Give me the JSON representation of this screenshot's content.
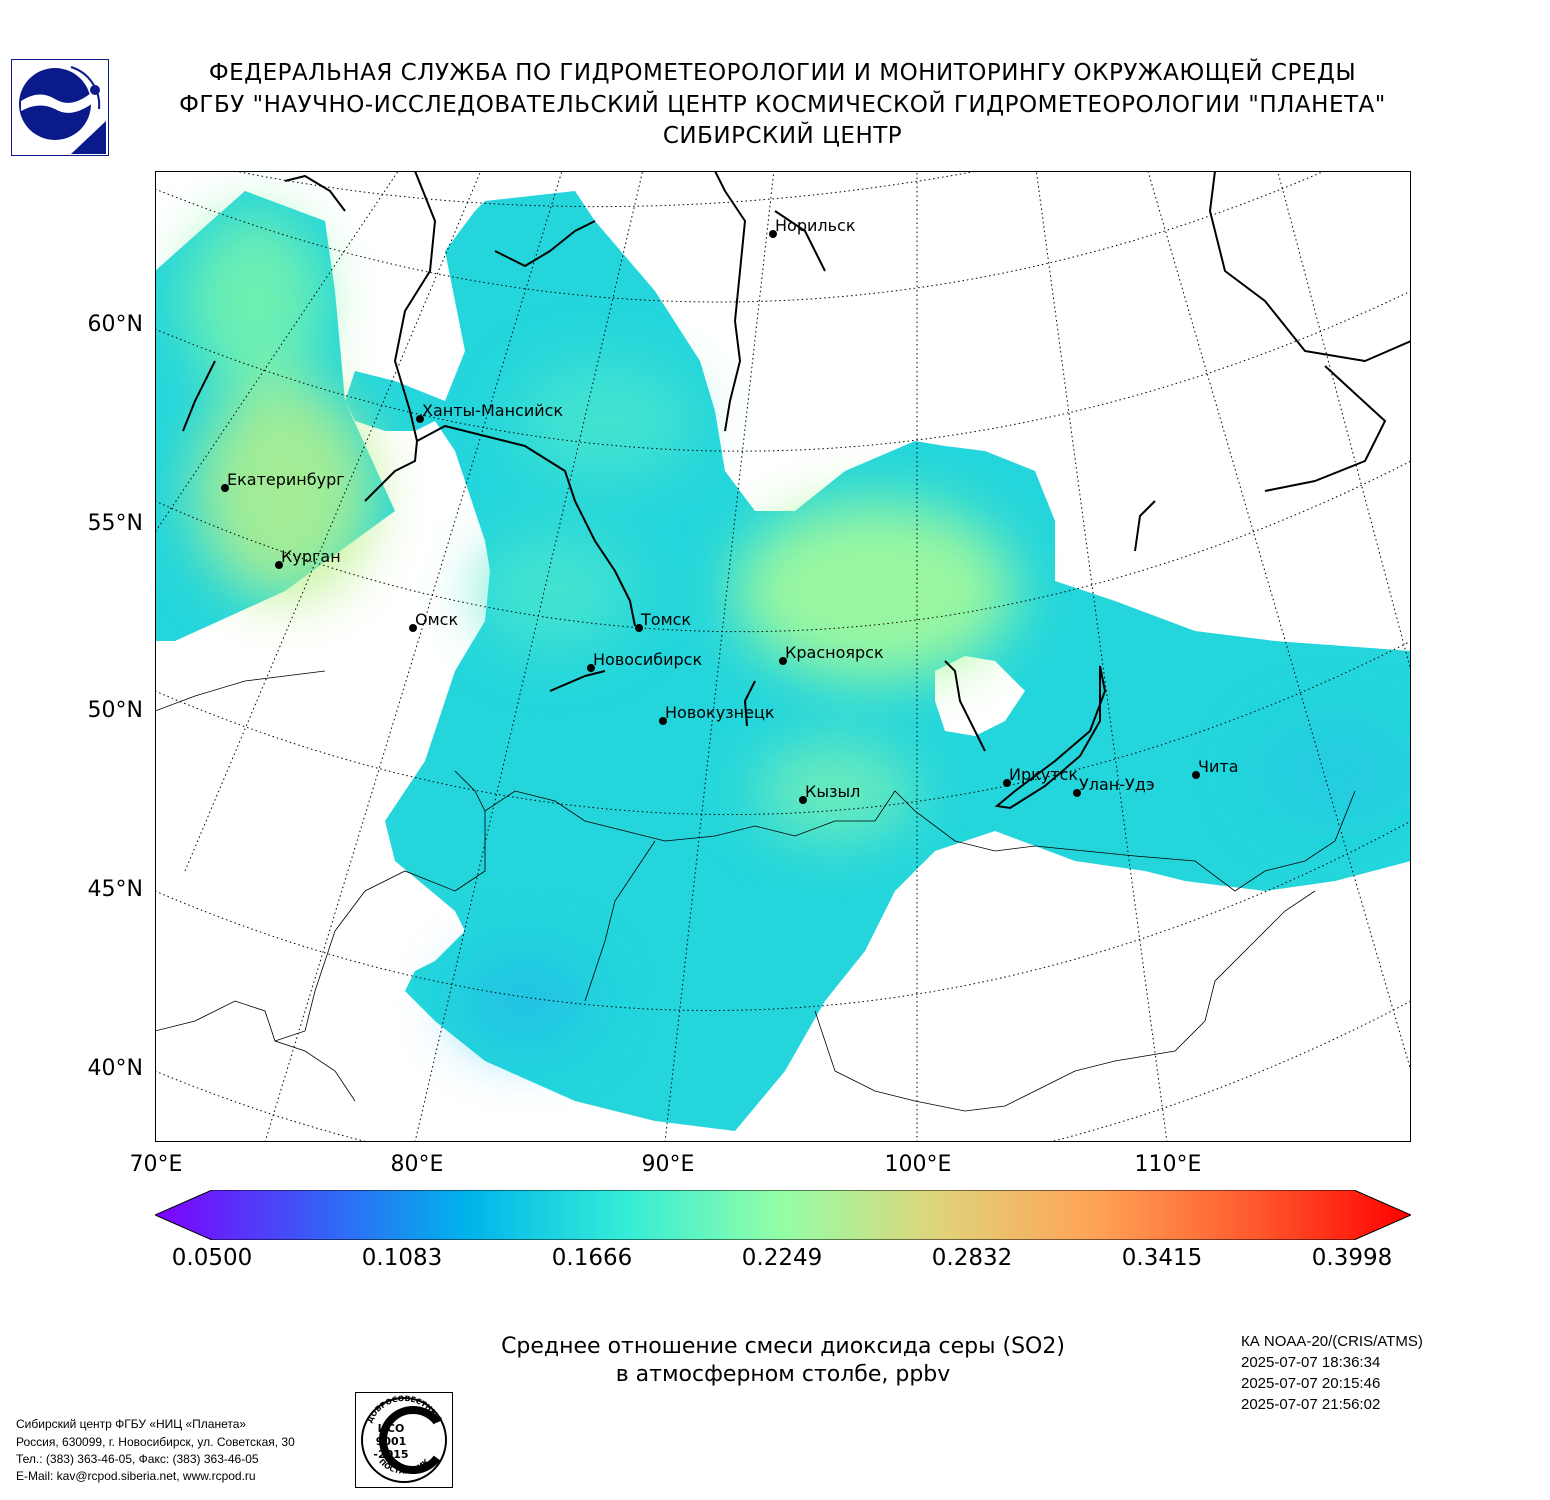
{
  "header": {
    "line1": "ФЕДЕРАЛЬНАЯ СЛУЖБА ПО ГИДРОМЕТЕОРОЛОГИИ И МОНИТОРИНГУ ОКРУЖАЮЩЕЙ СРЕДЫ",
    "line2": "ФГБУ \"НАУЧНО-ИССЛЕДОВАТЕЛЬСКИЙ ЦЕНТР КОСМИЧЕСКОЙ ГИДРОМЕТЕОРОЛОГИИ \"ПЛАНЕТА\"",
    "line3": "СИБИРСКИЙ ЦЕНТР"
  },
  "map": {
    "lat_labels": [
      "60°N",
      "55°N",
      "50°N",
      "45°N",
      "40°N"
    ],
    "lon_labels": [
      "70°E",
      "80°E",
      "90°E",
      "100°E",
      "110°E"
    ],
    "cities": [
      {
        "name": "Норильск"
      },
      {
        "name": "Ханты-Мансийск"
      },
      {
        "name": "Екатеринбург"
      },
      {
        "name": "Курган"
      },
      {
        "name": "Омск"
      },
      {
        "name": "Томск"
      },
      {
        "name": "Новосибирск"
      },
      {
        "name": "Красноярск"
      },
      {
        "name": "Новокузнецк"
      },
      {
        "name": "Кызыл"
      },
      {
        "name": "Иркутск"
      },
      {
        "name": "Улан-Удэ"
      },
      {
        "name": "Чита"
      }
    ]
  },
  "colorbar": {
    "ticks": [
      "0.0500",
      "0.1083",
      "0.1666",
      "0.2249",
      "0.2832",
      "0.3415",
      "0.3998"
    ],
    "min": 0.05,
    "max": 0.3998,
    "colors": [
      "#7f00ff",
      "#3b5af7",
      "#00b5eb",
      "#34edd6",
      "#94fea6",
      "#e0d37a",
      "#ffa256",
      "#ff5a2d",
      "#ff0000"
    ]
  },
  "caption": {
    "line1": "Среднее отношение смеси диоксида серы (SO2)",
    "line2": "в атмосферном столбе, ppbv"
  },
  "satellite": {
    "instrument": "КА NOAA-20/(CRIS/ATMS)",
    "times": [
      "2025-07-07 18:36:34",
      "2025-07-07 20:15:46",
      "2025-07-07 21:56:02"
    ]
  },
  "footer": {
    "lines": [
      "Сибирский центр ФГБУ «НИЦ «Планета»",
      "Россия, 630099, г. Новосибирск, ул. Советская, 30",
      "Тел.: (383) 363-46-05, Факс: (383) 363-46-05",
      "E-Mail: kav@rcpod.siberia.net, www.rcpod.ru"
    ]
  },
  "iso_badge": {
    "top_text": "ДОБРОСОВЕСТНЫЙ",
    "center_text": [
      "ИСО",
      "9001",
      "-2015"
    ],
    "bottom_text": "ПОСТАВЩИК"
  }
}
